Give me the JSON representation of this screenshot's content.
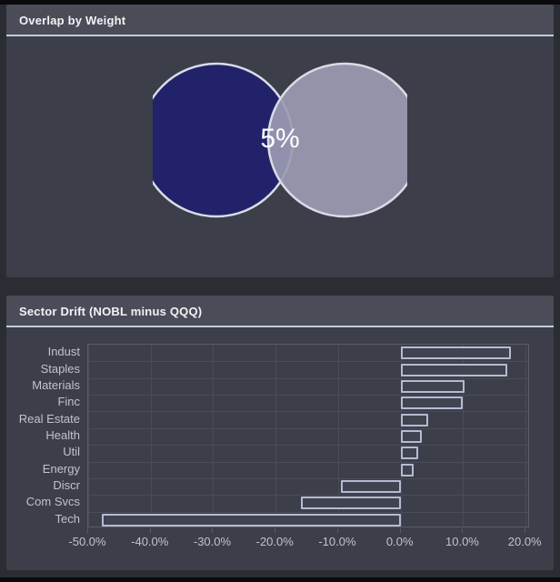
{
  "colors": {
    "page_bg": "#2b2d34",
    "frame": "#0a0a0c",
    "panel_bg": "#3c3f49",
    "header_bg": "#4a4c57",
    "header_text": "#f2f3f5",
    "border_light": "#c6c9de",
    "grid": "#4a4c56",
    "axis_line": "#5a5c66",
    "axis_text": "#c2c3ca",
    "bar_fill": "#3f4450",
    "bar_border": "#b6bad4",
    "venn_left": "#22226a",
    "venn_right": "#9b9bb3",
    "venn_stroke": "#d9dbe6",
    "overlap_text": "#ffffff"
  },
  "chart_data": [
    {
      "type": "venn",
      "title": "Overlap by Weight",
      "overlap_label": "5%",
      "overlap_value": 5,
      "sets": [
        {
          "color": "#22226a"
        },
        {
          "color": "#9b9bb3"
        }
      ]
    },
    {
      "type": "bar",
      "orientation": "horizontal",
      "title": "Sector Drift (NOBL minus QQQ)",
      "categories": [
        "Indust",
        "Staples",
        "Materials",
        "Finc",
        "Real Estate",
        "Health",
        "Util",
        "Energy",
        "Discr",
        "Com Svcs",
        "Tech"
      ],
      "values": [
        17.7,
        17.0,
        10.2,
        10.0,
        4.4,
        3.4,
        2.8,
        2.1,
        -9.5,
        -16.0,
        -47.8
      ],
      "xlabel": "",
      "ylabel": "",
      "xlim": [
        -50,
        20.7
      ],
      "xticks": [
        -50,
        -40,
        -30,
        -20,
        -10,
        0,
        10,
        20
      ],
      "xtick_labels": [
        "-50.0%",
        "-40.0%",
        "-30.0%",
        "-20.0%",
        "-10.0%",
        "0.0%",
        "10.0%",
        "20.0%"
      ],
      "grid": true,
      "legend": false
    }
  ]
}
